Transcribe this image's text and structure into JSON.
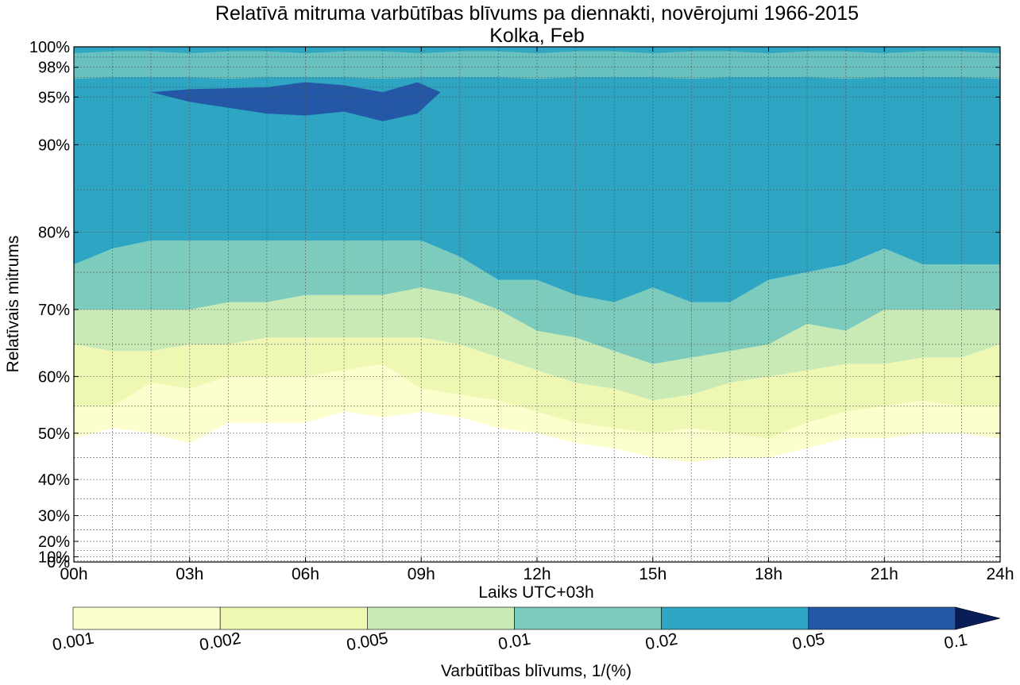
{
  "chart_data": {
    "type": "contourf",
    "title": "Relatīvā mitruma varbūtības blīvums pa diennakti, novērojumi 1966-2015",
    "subtitle": "Kolka, Feb",
    "xlabel": "Laiks UTC+03h",
    "ylabel": "Relatīvais mitrums",
    "xlim": [
      0,
      24
    ],
    "ylim": [
      0,
      100
    ],
    "x_scale": "sqrt-like (power 2) on relative humidity",
    "x_ticks": [
      {
        "v": 0,
        "label": "00h"
      },
      {
        "v": 3,
        "label": "03h"
      },
      {
        "v": 6,
        "label": "06h"
      },
      {
        "v": 9,
        "label": "09h"
      },
      {
        "v": 12,
        "label": "12h"
      },
      {
        "v": 15,
        "label": "15h"
      },
      {
        "v": 18,
        "label": "18h"
      },
      {
        "v": 21,
        "label": "21h"
      },
      {
        "v": 24,
        "label": "24h"
      }
    ],
    "y_ticks": [
      {
        "v": 0,
        "label": "0%"
      },
      {
        "v": 10,
        "label": "10%"
      },
      {
        "v": 20,
        "label": "20%"
      },
      {
        "v": 30,
        "label": "30%"
      },
      {
        "v": 40,
        "label": "40%"
      },
      {
        "v": 50,
        "label": "50%"
      },
      {
        "v": 60,
        "label": "60%"
      },
      {
        "v": 70,
        "label": "70%"
      },
      {
        "v": 80,
        "label": "80%"
      },
      {
        "v": 90,
        "label": "90%"
      },
      {
        "v": 95,
        "label": "95%"
      },
      {
        "v": 98,
        "label": "98%"
      },
      {
        "v": 100,
        "label": "100%"
      }
    ],
    "grid": true,
    "levels": [
      0.001,
      0.002,
      0.005,
      0.01,
      0.02,
      0.05,
      0.1
    ],
    "level_colors": [
      "#fdfece",
      "#eff8b2",
      "#c9eab4",
      "#7ccbbc",
      "#2da5c3",
      "#2458a7",
      "#091d58"
    ],
    "colorbar": {
      "label": "Varbūtības blīvums, 1/(%)",
      "tick_labels": [
        "0.001",
        "0.002",
        "0.005",
        "0.01",
        "0.02",
        "0.05",
        "0.1"
      ],
      "extend": "max"
    },
    "hours": [
      0,
      1,
      2,
      3,
      4,
      5,
      6,
      7,
      8,
      9,
      10,
      11,
      12,
      13,
      14,
      15,
      16,
      17,
      18,
      19,
      20,
      21,
      22,
      23,
      24
    ],
    "contour_boundaries": [
      {
        "level": 0.001,
        "rh": [
          49,
          51,
          50,
          48,
          52,
          52,
          52,
          54,
          53,
          54,
          53,
          51,
          50,
          48,
          47,
          45,
          44,
          45,
          45,
          47,
          49,
          49,
          50,
          50,
          49
        ]
      },
      {
        "level": 0.002,
        "rh": [
          55,
          55,
          59,
          58,
          60,
          60,
          60,
          61,
          62,
          58,
          57,
          56,
          54,
          52,
          51,
          50,
          51,
          50,
          49,
          52,
          54,
          55,
          56,
          55,
          55
        ]
      },
      {
        "level": 0.005,
        "rh": [
          65,
          64,
          64,
          65,
          65,
          66,
          66,
          66,
          66,
          66,
          65,
          63,
          61,
          59,
          58,
          56,
          57,
          59,
          60,
          61,
          62,
          62,
          63,
          63,
          65
        ]
      },
      {
        "level": 0.01,
        "rh": [
          70,
          70,
          70,
          70,
          71,
          71,
          72,
          72,
          72,
          73,
          72,
          70,
          67,
          66,
          64,
          62,
          63,
          64,
          65,
          68,
          67,
          70,
          70,
          70,
          70
        ]
      },
      {
        "level": 0.02,
        "rh": [
          76,
          78,
          79,
          79,
          79,
          79,
          79,
          79,
          79,
          79,
          77,
          74,
          74,
          72,
          71,
          73,
          71,
          71,
          74,
          75,
          76,
          78,
          76,
          76,
          76
        ]
      }
    ],
    "high_density_patch": {
      "level": 0.05,
      "hours": [
        2,
        9.5
      ],
      "rh_range": [
        92.5,
        96.5
      ]
    },
    "top_band": {
      "rh_range": [
        97,
        99.5
      ],
      "note": "lighter band near saturation"
    }
  }
}
